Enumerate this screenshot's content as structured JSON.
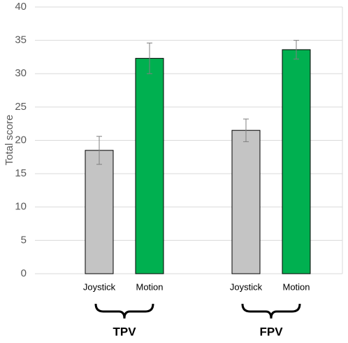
{
  "chart_data": {
    "type": "bar",
    "y_label": "Total score",
    "categories": [
      "TPV",
      "FPV"
    ],
    "series": [
      {
        "name": "Joystick",
        "color": "#c4c4c4",
        "values": [
          18.5,
          21.5
        ],
        "errors": [
          2.1,
          1.7
        ]
      },
      {
        "name": "Motion",
        "color": "#00b050",
        "values": [
          32.3,
          33.6
        ],
        "errors": [
          2.3,
          1.4
        ]
      }
    ],
    "ylim": [
      0,
      40
    ],
    "yticks": [
      0,
      5,
      10,
      15,
      20,
      25,
      30,
      35,
      40
    ],
    "grid": true
  }
}
